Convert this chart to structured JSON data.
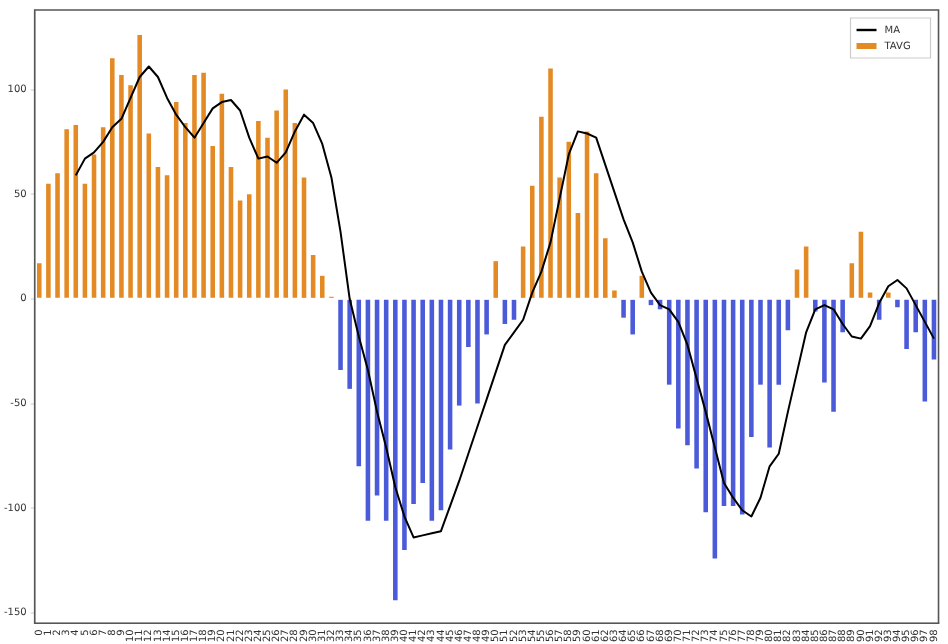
{
  "chart_data": {
    "type": "bar",
    "categories": [
      "0",
      "1",
      "2",
      "3",
      "4",
      "5",
      "6",
      "7",
      "8",
      "9",
      "10",
      "11",
      "12",
      "13",
      "14",
      "15",
      "16",
      "17",
      "18",
      "19",
      "20",
      "21",
      "22",
      "23",
      "24",
      "25",
      "26",
      "27",
      "28",
      "29",
      "30",
      "31",
      "32",
      "33",
      "34",
      "35",
      "36",
      "37",
      "38",
      "39",
      "40",
      "41",
      "42",
      "43",
      "44",
      "45",
      "46",
      "47",
      "48",
      "49",
      "50",
      "51",
      "52",
      "53",
      "54",
      "55",
      "56",
      "57",
      "58",
      "59",
      "60",
      "61",
      "62",
      "63",
      "64",
      "65",
      "66",
      "67",
      "68",
      "69",
      "70",
      "71",
      "72",
      "73",
      "74",
      "75",
      "76",
      "77",
      "78",
      "79",
      "80",
      "81",
      "82",
      "83",
      "84",
      "85",
      "86",
      "87",
      "88",
      "89",
      "90",
      "91",
      "92",
      "93",
      "94",
      "95",
      "96",
      "97",
      "98"
    ],
    "series": [
      {
        "name": "MA",
        "type": "line",
        "color": "#000000",
        "values": [
          null,
          null,
          null,
          null,
          59,
          67,
          70,
          75,
          82,
          86,
          96,
          106,
          111,
          106,
          96,
          88,
          82,
          77,
          84,
          91,
          94,
          95,
          90,
          77,
          67,
          68,
          65,
          70,
          80,
          88,
          84,
          74,
          58,
          32,
          0,
          -18,
          -34,
          -54,
          -71,
          -90,
          -104,
          -114,
          -113,
          -112,
          -111,
          -99,
          -87,
          -74,
          -61,
          -48,
          -35,
          -22,
          -16,
          -10,
          3,
          13,
          27,
          48,
          69,
          80,
          79,
          77,
          64,
          51,
          38,
          27,
          13,
          3,
          -3,
          -5,
          -11,
          -22,
          -38,
          -54,
          -71,
          -88,
          -95,
          -101,
          -104,
          -95,
          -80,
          -74,
          -54,
          -35,
          -16,
          -5,
          -3,
          -5,
          -12,
          -18,
          -19,
          -13,
          -2,
          6,
          9,
          5,
          -3,
          -11,
          -19
        ]
      },
      {
        "name": "TAVG",
        "color": "#e38a24",
        "values": [
          17,
          55,
          60,
          81,
          83,
          55,
          69,
          82,
          115,
          107,
          102,
          126,
          79,
          63,
          59,
          94,
          84,
          107,
          108,
          73,
          98,
          63,
          47,
          50,
          85,
          77,
          90,
          100,
          84,
          58,
          21,
          11,
          1,
          -34,
          -43,
          -80,
          -106,
          -94,
          -106,
          -144,
          -120,
          -98,
          -88,
          -106,
          -101,
          -72,
          -51,
          -23,
          -50,
          -17,
          18,
          -12,
          -10,
          25,
          54,
          87,
          110,
          58,
          75,
          41,
          80,
          60,
          29,
          4,
          -9,
          -17,
          11,
          -3,
          -5,
          -41,
          -62,
          -70,
          -81,
          -102,
          -124,
          -99,
          -99,
          -103,
          -66,
          -41,
          -71,
          -41,
          -15,
          14,
          25,
          -6,
          -40,
          -54,
          -16,
          17,
          32,
          3,
          -10,
          3,
          -4,
          -24,
          -16,
          -49,
          -29
        ],
        "colors": [
          "#e38a24",
          "#e38a24",
          "#e38a24",
          "#e38a24",
          "#e38a24",
          "#e38a24",
          "#e38a24",
          "#e38a24",
          "#e38a24",
          "#e38a24",
          "#e38a24",
          "#e38a24",
          "#e38a24",
          "#e38a24",
          "#e38a24",
          "#e38a24",
          "#e38a24",
          "#e38a24",
          "#e38a24",
          "#e38a24",
          "#e38a24",
          "#e38a24",
          "#e38a24",
          "#e38a24",
          "#e38a24",
          "#e38a24",
          "#e38a24",
          "#e38a24",
          "#e38a24",
          "#e38a24",
          "#e38a24",
          "#e38a24",
          "#e38a24",
          "#4a5ad8",
          "#4a5ad8",
          "#4a5ad8",
          "#4a5ad8",
          "#4a5ad8",
          "#4a5ad8",
          "#4a5ad8",
          "#4a5ad8",
          "#4a5ad8",
          "#4a5ad8",
          "#4a5ad8",
          "#4a5ad8",
          "#4a5ad8",
          "#4a5ad8",
          "#4a5ad8",
          "#4a5ad8",
          "#4a5ad8",
          "#e38a24",
          "#4a5ad8",
          "#4a5ad8",
          "#e38a24",
          "#e38a24",
          "#e38a24",
          "#e38a24",
          "#e38a24",
          "#e38a24",
          "#e38a24",
          "#e38a24",
          "#e38a24",
          "#e38a24",
          "#e38a24",
          "#4a5ad8",
          "#4a5ad8",
          "#e38a24",
          "#4a5ad8",
          "#4a5ad8",
          "#4a5ad8",
          "#4a5ad8",
          "#4a5ad8",
          "#4a5ad8",
          "#4a5ad8",
          "#4a5ad8",
          "#4a5ad8",
          "#4a5ad8",
          "#4a5ad8",
          "#4a5ad8",
          "#4a5ad8",
          "#4a5ad8",
          "#4a5ad8",
          "#4a5ad8",
          "#e38a24",
          "#e38a24",
          "#4a5ad8",
          "#4a5ad8",
          "#4a5ad8",
          "#4a5ad8",
          "#e38a24",
          "#e38a24",
          "#e38a24",
          "#4a5ad8",
          "#e38a24",
          "#4a5ad8",
          "#4a5ad8",
          "#4a5ad8",
          "#4a5ad8",
          "#4a5ad8"
        ]
      }
    ],
    "ylim": [
      -155,
      138
    ],
    "yticks": [
      -150,
      -100,
      -50,
      0,
      50,
      100
    ],
    "grid": false,
    "legend": "top right",
    "marker": "none"
  }
}
